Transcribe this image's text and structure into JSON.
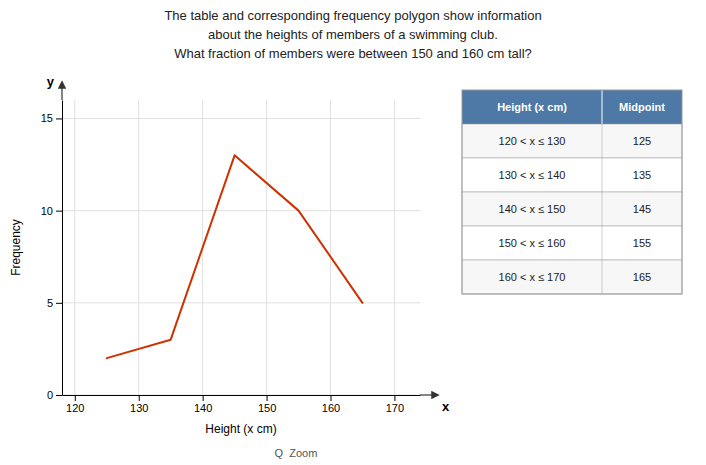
{
  "chart_data": {
    "type": "line",
    "title": "The table and corresponding frequency polygon show information",
    "subtitle": "about the heights of members of a swimming club.",
    "annotations": [
      "What fraction of members were between 150 and 160 cm tall?",
      "y",
      "x",
      "Q  Zoom"
    ],
    "x": [
      125,
      135,
      145,
      155,
      165
    ],
    "values": [
      2,
      3,
      13,
      10,
      5
    ],
    "color": "#cc3300",
    "xlim": [
      118,
      174
    ],
    "ylim": [
      0,
      16
    ],
    "xticks": [
      120,
      130,
      140,
      150,
      160,
      170
    ],
    "yticks": [
      0,
      5,
      10,
      15
    ],
    "xlabel": "Height (x cm)",
    "ylabel": "Frequency",
    "grid": true,
    "table": {
      "headers": [
        "Height (x cm)",
        "Midpoint"
      ],
      "rows": [
        [
          "120 < x ≤ 130",
          "125"
        ],
        [
          "130 < x ≤ 140",
          "135"
        ],
        [
          "140 < x ≤ 150",
          "145"
        ],
        [
          "150 < x ≤ 160",
          "155"
        ],
        [
          "160 < x ≤ 170",
          "165"
        ]
      ]
    }
  }
}
